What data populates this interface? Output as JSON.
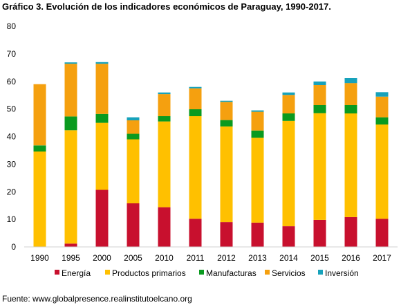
{
  "title": "Gráfico 3. Evolución de los indicadores económicos de Paraguay, 1990-2017.",
  "source": "Fuente: www.globalpresence.realinstitutoelcano.org",
  "chart_data": {
    "type": "bar",
    "stacked": true,
    "title": "Gráfico 3. Evolución de los indicadores económicos de Paraguay, 1990-2017.",
    "xlabel": "",
    "ylabel": "",
    "ylim": [
      0,
      80
    ],
    "yticks": [
      "0",
      "10",
      "20",
      "30",
      "40",
      "50",
      "60",
      "70",
      "80"
    ],
    "grid": false,
    "legend_position": "bottom",
    "categories": [
      "1990",
      "1995",
      "2000",
      "2005",
      "2010",
      "2011",
      "2012",
      "2013",
      "2014",
      "2015",
      "2016",
      "2017"
    ],
    "series": [
      {
        "name": "Energía",
        "color": "#c8102e",
        "values": [
          0,
          1.2,
          20.7,
          15.8,
          14.4,
          10.2,
          9.0,
          8.8,
          7.5,
          9.8,
          10.8,
          10.2
        ]
      },
      {
        "name": "Productos primarios",
        "color": "#ffc000",
        "values": [
          34.6,
          41.1,
          24.3,
          23.2,
          31.1,
          37.2,
          34.7,
          30.8,
          38.2,
          38.7,
          37.6,
          34.2
        ]
      },
      {
        "name": "Manufacturas",
        "color": "#0a9a1f",
        "values": [
          2.2,
          5.0,
          3.2,
          2.0,
          1.9,
          2.5,
          2.3,
          2.6,
          2.7,
          2.9,
          3.0,
          2.6
        ]
      },
      {
        "name": "Servicios",
        "color": "#f5a00f",
        "values": [
          22.2,
          19.1,
          18.2,
          4.9,
          8.0,
          7.6,
          6.6,
          6.8,
          6.7,
          7.3,
          8.0,
          7.5
        ]
      },
      {
        "name": "Inversión",
        "color": "#17a2bb",
        "values": [
          0,
          0.5,
          0.6,
          1.1,
          0.6,
          0.5,
          0.4,
          0.5,
          0.9,
          1.3,
          1.8,
          1.6
        ]
      }
    ]
  }
}
